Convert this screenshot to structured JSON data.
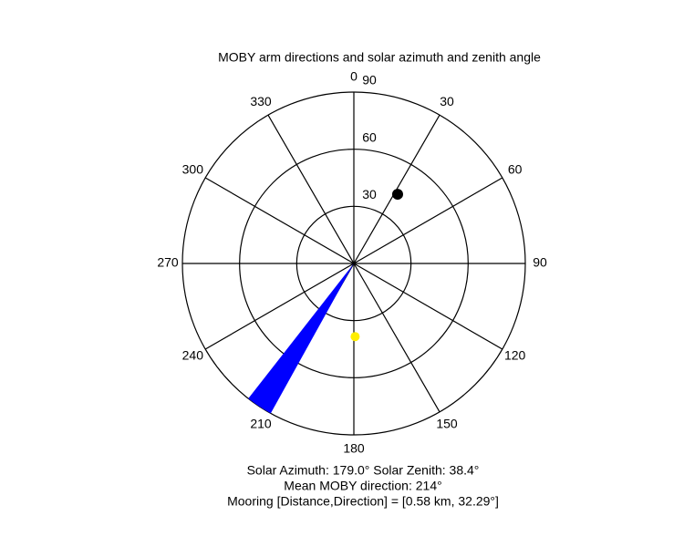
{
  "chart_data": {
    "type": "polar",
    "title": "MOBY arm directions and solar azimuth and zenith angle",
    "rlim": [
      0,
      90
    ],
    "rticks": [
      30,
      60,
      90
    ],
    "thetaticks": [
      0,
      30,
      60,
      90,
      120,
      150,
      180,
      210,
      240,
      270,
      300,
      330
    ],
    "sector": {
      "theta": [
        209,
        218
      ],
      "r": 90,
      "color": "#0000ff"
    },
    "points": [
      {
        "theta": 32.29,
        "r": 43,
        "color": "#000000"
      },
      {
        "theta": 179.0,
        "r": 38.4,
        "color": "#ffee00"
      }
    ],
    "annotations": [
      "Solar Azimuth: 179.0°   Solar Zenith: 38.4°",
      "Mean MOBY direction: 214°",
      "Mooring [Distance,Direction] = [0.58 km, 32.29°]"
    ]
  }
}
